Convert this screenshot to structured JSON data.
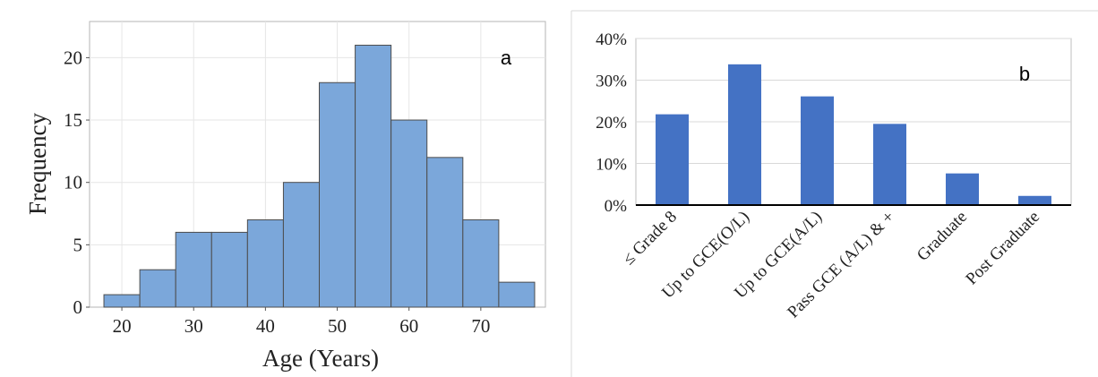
{
  "chart_data": [
    {
      "type": "bar",
      "panel_label": "a",
      "xlabel": "Age (Years)",
      "ylabel": "Frequency",
      "bin_width": 5,
      "bins": [
        {
          "start": 17.5,
          "end": 22.5,
          "value": 1
        },
        {
          "start": 22.5,
          "end": 27.5,
          "value": 3
        },
        {
          "start": 27.5,
          "end": 32.5,
          "value": 6
        },
        {
          "start": 32.5,
          "end": 37.5,
          "value": 6
        },
        {
          "start": 37.5,
          "end": 42.5,
          "value": 7
        },
        {
          "start": 42.5,
          "end": 47.5,
          "value": 10
        },
        {
          "start": 47.5,
          "end": 52.5,
          "value": 18
        },
        {
          "start": 52.5,
          "end": 57.5,
          "value": 21
        },
        {
          "start": 57.5,
          "end": 62.5,
          "value": 15
        },
        {
          "start": 62.5,
          "end": 67.5,
          "value": 12
        },
        {
          "start": 67.5,
          "end": 72.5,
          "value": 7
        },
        {
          "start": 72.5,
          "end": 77.5,
          "value": 2
        }
      ],
      "x_ticks": [
        "20",
        "30",
        "40",
        "50",
        "60",
        "70"
      ],
      "x_tick_values": [
        20,
        30,
        40,
        50,
        60,
        70
      ],
      "y_ticks": [
        "0",
        "5",
        "10",
        "15",
        "20"
      ],
      "y_tick_values": [
        0,
        5,
        10,
        15,
        20
      ],
      "xlim": [
        15.5,
        79.0
      ],
      "ylim": [
        0,
        22.9
      ],
      "grid": true,
      "bar_color": "#7ba7da"
    },
    {
      "type": "bar",
      "panel_label": "b",
      "categories": [
        "≤ Grade 8",
        "Up to GCE(O/L)",
        "Up to GCE(A/L)",
        "Pass GCE (A/L) & +",
        "Graduate",
        "Post Graduate"
      ],
      "values": [
        21.8,
        33.8,
        26.1,
        19.5,
        7.6,
        2.2
      ],
      "y_ticks": [
        "0%",
        "10%",
        "20%",
        "30%",
        "40%"
      ],
      "y_tick_values": [
        0,
        10,
        20,
        30,
        40
      ],
      "ylim": [
        0,
        40
      ],
      "grid": true,
      "bar_color": "#4472c4"
    }
  ]
}
